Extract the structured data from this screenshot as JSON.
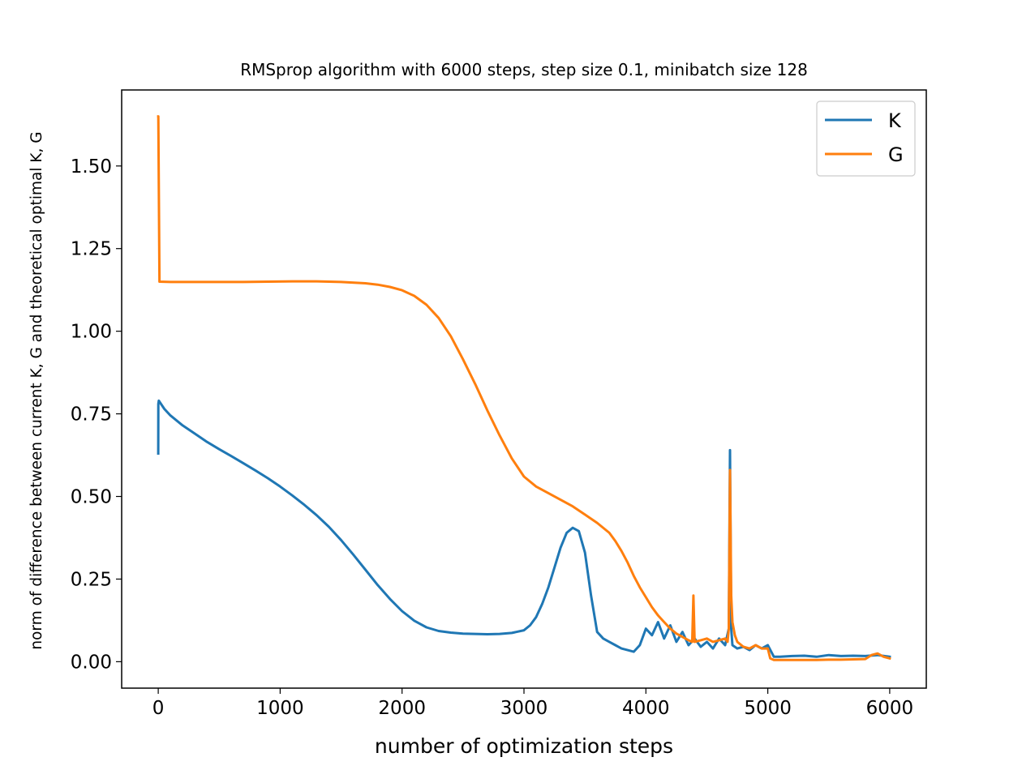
{
  "chart_data": {
    "type": "line",
    "title": "RMSprop algorithm with 6000 steps, step size 0.1, minibatch size 128",
    "xlabel": "number of optimization steps",
    "ylabel": "norm of difference between current K, G and theoretical optimal K, G",
    "xlim": [
      -300,
      6300
    ],
    "ylim": [
      -0.08,
      1.73
    ],
    "xticks": [
      0,
      1000,
      2000,
      3000,
      4000,
      5000,
      6000
    ],
    "xtick_labels": [
      "0",
      "1000",
      "2000",
      "3000",
      "4000",
      "5000",
      "6000"
    ],
    "yticks": [
      0.0,
      0.25,
      0.5,
      0.75,
      1.0,
      1.25,
      1.5
    ],
    "ytick_labels": [
      "0.00",
      "0.25",
      "0.50",
      "0.75",
      "1.00",
      "1.25",
      "1.50"
    ],
    "grid": false,
    "legend_position": "top-right",
    "series": [
      {
        "name": "K",
        "color": "#1f77b4",
        "x": [
          0,
          1,
          5,
          50,
          100,
          200,
          300,
          400,
          500,
          600,
          700,
          800,
          900,
          1000,
          1100,
          1200,
          1300,
          1400,
          1500,
          1600,
          1700,
          1800,
          1900,
          2000,
          2100,
          2200,
          2300,
          2400,
          2500,
          2600,
          2700,
          2800,
          2900,
          3000,
          3050,
          3100,
          3150,
          3200,
          3250,
          3300,
          3350,
          3400,
          3450,
          3500,
          3550,
          3600,
          3650,
          3700,
          3750,
          3800,
          3850,
          3900,
          3950,
          4000,
          4050,
          4100,
          4150,
          4200,
          4250,
          4300,
          4350,
          4400,
          4450,
          4500,
          4550,
          4600,
          4650,
          4680,
          4690,
          4700,
          4710,
          4750,
          4800,
          4850,
          4900,
          4950,
          5000,
          5050,
          5100,
          5200,
          5300,
          5400,
          5500,
          5600,
          5700,
          5800,
          5900,
          6000
        ],
        "y": [
          0.63,
          0.78,
          0.79,
          0.765,
          0.745,
          0.715,
          0.69,
          0.665,
          0.643,
          0.622,
          0.6,
          0.578,
          0.555,
          0.53,
          0.503,
          0.474,
          0.443,
          0.408,
          0.368,
          0.324,
          0.278,
          0.232,
          0.19,
          0.153,
          0.124,
          0.104,
          0.093,
          0.088,
          0.085,
          0.084,
          0.083,
          0.084,
          0.087,
          0.095,
          0.11,
          0.135,
          0.175,
          0.225,
          0.285,
          0.345,
          0.39,
          0.405,
          0.395,
          0.33,
          0.2,
          0.09,
          0.07,
          0.06,
          0.05,
          0.04,
          0.035,
          0.03,
          0.05,
          0.1,
          0.08,
          0.12,
          0.07,
          0.11,
          0.06,
          0.09,
          0.05,
          0.07,
          0.045,
          0.06,
          0.04,
          0.07,
          0.05,
          0.1,
          0.64,
          0.1,
          0.05,
          0.04,
          0.045,
          0.035,
          0.05,
          0.04,
          0.05,
          0.015,
          0.015,
          0.017,
          0.018,
          0.015,
          0.02,
          0.017,
          0.018,
          0.017,
          0.02,
          0.015
        ]
      },
      {
        "name": "G",
        "color": "#ff7f0e",
        "x": [
          0,
          1,
          10,
          100,
          300,
          500,
          700,
          900,
          1100,
          1300,
          1500,
          1700,
          1800,
          1900,
          2000,
          2100,
          2200,
          2300,
          2400,
          2500,
          2600,
          2700,
          2800,
          2900,
          3000,
          3100,
          3200,
          3300,
          3400,
          3500,
          3600,
          3700,
          3750,
          3800,
          3850,
          3900,
          3950,
          4000,
          4050,
          4100,
          4150,
          4200,
          4250,
          4300,
          4350,
          4380,
          4390,
          4400,
          4450,
          4500,
          4550,
          4600,
          4650,
          4670,
          4680,
          4690,
          4700,
          4710,
          4730,
          4750,
          4800,
          4850,
          4900,
          4950,
          5000,
          5020,
          5050,
          5100,
          5200,
          5300,
          5400,
          5500,
          5600,
          5700,
          5800,
          5850,
          5900,
          5950,
          6000
        ],
        "y": [
          1.65,
          1.65,
          1.15,
          1.149,
          1.149,
          1.149,
          1.149,
          1.15,
          1.151,
          1.151,
          1.149,
          1.145,
          1.141,
          1.134,
          1.124,
          1.107,
          1.08,
          1.04,
          0.985,
          0.915,
          0.84,
          0.76,
          0.685,
          0.615,
          0.56,
          0.53,
          0.51,
          0.49,
          0.47,
          0.445,
          0.42,
          0.39,
          0.365,
          0.335,
          0.3,
          0.26,
          0.225,
          0.195,
          0.165,
          0.14,
          0.12,
          0.1,
          0.085,
          0.075,
          0.065,
          0.06,
          0.2,
          0.06,
          0.065,
          0.07,
          0.06,
          0.065,
          0.07,
          0.06,
          0.1,
          0.58,
          0.2,
          0.12,
          0.08,
          0.06,
          0.045,
          0.04,
          0.05,
          0.04,
          0.04,
          0.01,
          0.005,
          0.005,
          0.005,
          0.005,
          0.005,
          0.006,
          0.006,
          0.007,
          0.008,
          0.02,
          0.025,
          0.015,
          0.01
        ]
      }
    ]
  }
}
